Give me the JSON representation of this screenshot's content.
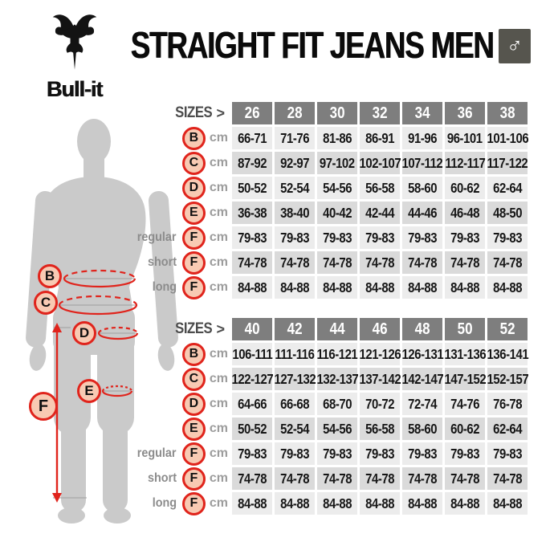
{
  "header": {
    "brand": "Bull-it",
    "title": "STRAIGHT FIT JEANS MEN",
    "gender_symbol": "♂"
  },
  "figure": {
    "markers": [
      "B",
      "C",
      "D",
      "E",
      "F"
    ]
  },
  "tables": [
    {
      "sizes_label": "SIZES",
      "chevron": ">",
      "unit": "cm",
      "sizes": [
        "26",
        "28",
        "30",
        "32",
        "34",
        "36",
        "38"
      ],
      "rows": [
        {
          "letter": "B",
          "length": "",
          "values": [
            "66-71",
            "71-76",
            "81-86",
            "86-91",
            "91-96",
            "96-101",
            "101-106"
          ]
        },
        {
          "letter": "C",
          "length": "",
          "values": [
            "87-92",
            "92-97",
            "97-102",
            "102-107",
            "107-112",
            "112-117",
            "117-122"
          ]
        },
        {
          "letter": "D",
          "length": "",
          "values": [
            "50-52",
            "52-54",
            "54-56",
            "56-58",
            "58-60",
            "60-62",
            "62-64"
          ]
        },
        {
          "letter": "E",
          "length": "",
          "values": [
            "36-38",
            "38-40",
            "40-42",
            "42-44",
            "44-46",
            "46-48",
            "48-50"
          ]
        },
        {
          "letter": "F",
          "length": "regular",
          "values": [
            "79-83",
            "79-83",
            "79-83",
            "79-83",
            "79-83",
            "79-83",
            "79-83"
          ]
        },
        {
          "letter": "F",
          "length": "short",
          "values": [
            "74-78",
            "74-78",
            "74-78",
            "74-78",
            "74-78",
            "74-78",
            "74-78"
          ]
        },
        {
          "letter": "F",
          "length": "long",
          "values": [
            "84-88",
            "84-88",
            "84-88",
            "84-88",
            "84-88",
            "84-88",
            "84-88"
          ]
        }
      ]
    },
    {
      "sizes_label": "SIZES",
      "chevron": ">",
      "unit": "cm",
      "sizes": [
        "40",
        "42",
        "44",
        "46",
        "48",
        "50",
        "52"
      ],
      "rows": [
        {
          "letter": "B",
          "length": "",
          "values": [
            "106-111",
            "111-116",
            "116-121",
            "121-126",
            "126-131",
            "131-136",
            "136-141"
          ]
        },
        {
          "letter": "C",
          "length": "",
          "values": [
            "122-127",
            "127-132",
            "132-137",
            "137-142",
            "142-147",
            "147-152",
            "152-157"
          ]
        },
        {
          "letter": "D",
          "length": "",
          "values": [
            "64-66",
            "66-68",
            "68-70",
            "70-72",
            "72-74",
            "74-76",
            "76-78"
          ]
        },
        {
          "letter": "E",
          "length": "",
          "values": [
            "50-52",
            "52-54",
            "54-56",
            "56-58",
            "58-60",
            "60-62",
            "62-64"
          ]
        },
        {
          "letter": "F",
          "length": "regular",
          "values": [
            "79-83",
            "79-83",
            "79-83",
            "79-83",
            "79-83",
            "79-83",
            "79-83"
          ]
        },
        {
          "letter": "F",
          "length": "short",
          "values": [
            "74-78",
            "74-78",
            "74-78",
            "74-78",
            "74-78",
            "74-78",
            "74-78"
          ]
        },
        {
          "letter": "F",
          "length": "long",
          "values": [
            "84-88",
            "84-88",
            "84-88",
            "84-88",
            "84-88",
            "84-88",
            "84-88"
          ]
        }
      ]
    }
  ],
  "colors": {
    "accent_red": "#e0241c",
    "badge_fill": "#f8cab3",
    "header_cell": "#7e7e7e",
    "row_light": "#ececec",
    "row_dark": "#dadada",
    "silhouette": "#cacaca",
    "gender_badge_bg": "#56554e"
  }
}
